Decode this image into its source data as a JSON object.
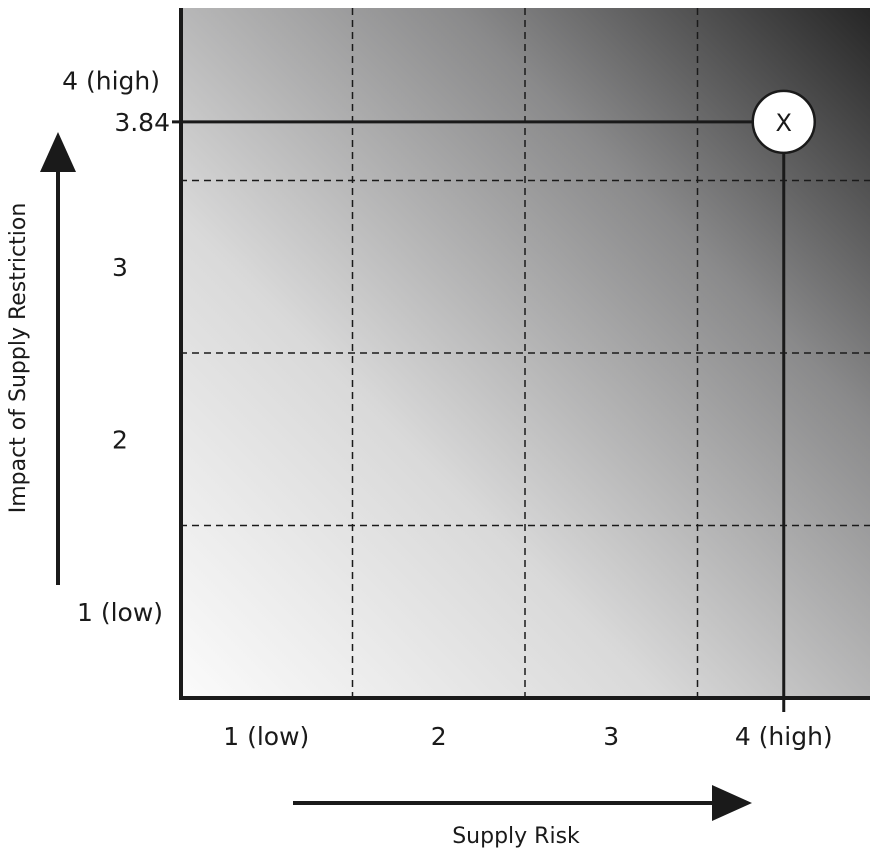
{
  "chart_data": {
    "type": "scatter",
    "xlabel": "Supply Risk",
    "ylabel": "Impact of Supply Restriction",
    "xlim": [
      0.5,
      4.5
    ],
    "ylim": [
      0.5,
      4.5
    ],
    "x_ticks": [
      {
        "value": 1,
        "label": "1 (low)"
      },
      {
        "value": 2,
        "label": "2"
      },
      {
        "value": 3,
        "label": "3"
      },
      {
        "value": 4,
        "label": "4 (high)"
      }
    ],
    "y_ticks": [
      {
        "value": 1,
        "label": "1 (low)"
      },
      {
        "value": 2,
        "label": "2"
      },
      {
        "value": 3,
        "label": "3"
      },
      {
        "value": 4,
        "label": "4 (high)"
      }
    ],
    "grid_x": [
      1.5,
      2.5,
      3.5
    ],
    "grid_y": [
      1.5,
      2.5,
      3.5
    ],
    "grid": true,
    "grid_style": "dashed",
    "background": "gradient from light (low/low) to dark (high/high)",
    "points": [
      {
        "x": 4.0,
        "y": 3.84,
        "label": "X",
        "y_reference_label": "3.84"
      }
    ],
    "colors": {
      "gradient_light": "#fbfbfb",
      "gradient_dark": "#262626",
      "ink": "#1a1a1a"
    }
  }
}
